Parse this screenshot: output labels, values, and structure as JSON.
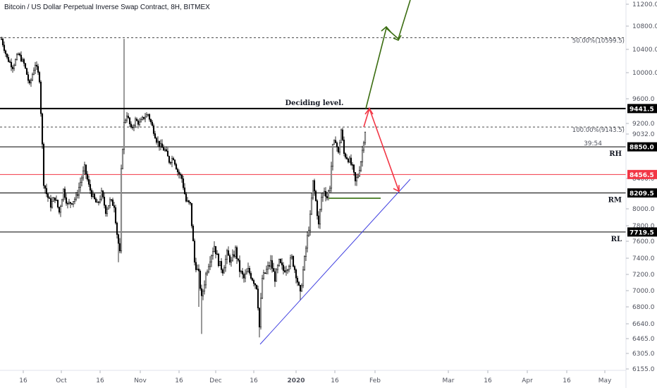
{
  "chart_data": {
    "type": "candlestick",
    "title": "Bitcoin / US Dollar Perpetual Inverse Swap Contract, 8H, BITMEX",
    "y_ticks": [
      6155,
      6305,
      6465,
      6640,
      6800,
      7000,
      7200,
      7400,
      7600,
      7800,
      8000,
      8400,
      9032,
      9200,
      9600,
      10000,
      10400,
      10800,
      11200
    ],
    "y_tick_labels": [
      "6155.0",
      "6305.0",
      "6465.0",
      "6640.0",
      "6800.0",
      "7000.0",
      "7200.0",
      "7400.0",
      "7600.0",
      "7800.0",
      "8000.0",
      "8400.0",
      "9032.0",
      "9200.0",
      "9600.0",
      "10000.0",
      "10400.0",
      "10800.0",
      "11200.0"
    ],
    "x_ticks": [
      "16",
      "Oct",
      "16",
      "Nov",
      "16",
      "Dec",
      "16",
      "2020",
      "16",
      "Feb",
      "Mar",
      "16",
      "Apr",
      "16",
      "May"
    ],
    "countdown": "39:54",
    "levels": [
      {
        "price": 9441.5,
        "label": "9441.5",
        "side_label": "",
        "color": "#000000",
        "badge_color": "#000000",
        "style": "solid",
        "width": 2
      },
      {
        "price": 8850.0,
        "label": "8850.0",
        "side_label": "RH",
        "color": "#000000",
        "badge_color": "#000000",
        "style": "solid",
        "width": 1
      },
      {
        "price": 8456.5,
        "label": "8456.5",
        "side_label": "",
        "color": "#f23645",
        "badge_color": "#f23645",
        "style": "solid",
        "width": 1
      },
      {
        "price": 8209.5,
        "label": "8209.5",
        "side_label": "RM",
        "color": "#000000",
        "badge_color": "#000000",
        "style": "solid",
        "width": 1
      },
      {
        "price": 7719.5,
        "label": "7719.5",
        "side_label": "RL",
        "color": "#000000",
        "badge_color": "#000000",
        "style": "solid",
        "width": 1
      }
    ],
    "fib_levels": [
      {
        "price": 10599.5,
        "label": "50.00%(10599.5)"
      },
      {
        "price": 9143.5,
        "label": "100.00%(9143.5)"
      }
    ],
    "annotations": {
      "deciding_level": "Deciding level."
    },
    "colors": {
      "candle": "#000000",
      "bull_arrow": "#3b6d11",
      "bear_arrow": "#f23645",
      "trendline": "#3f3fe0",
      "support_segment": "#5a8a3a"
    }
  }
}
